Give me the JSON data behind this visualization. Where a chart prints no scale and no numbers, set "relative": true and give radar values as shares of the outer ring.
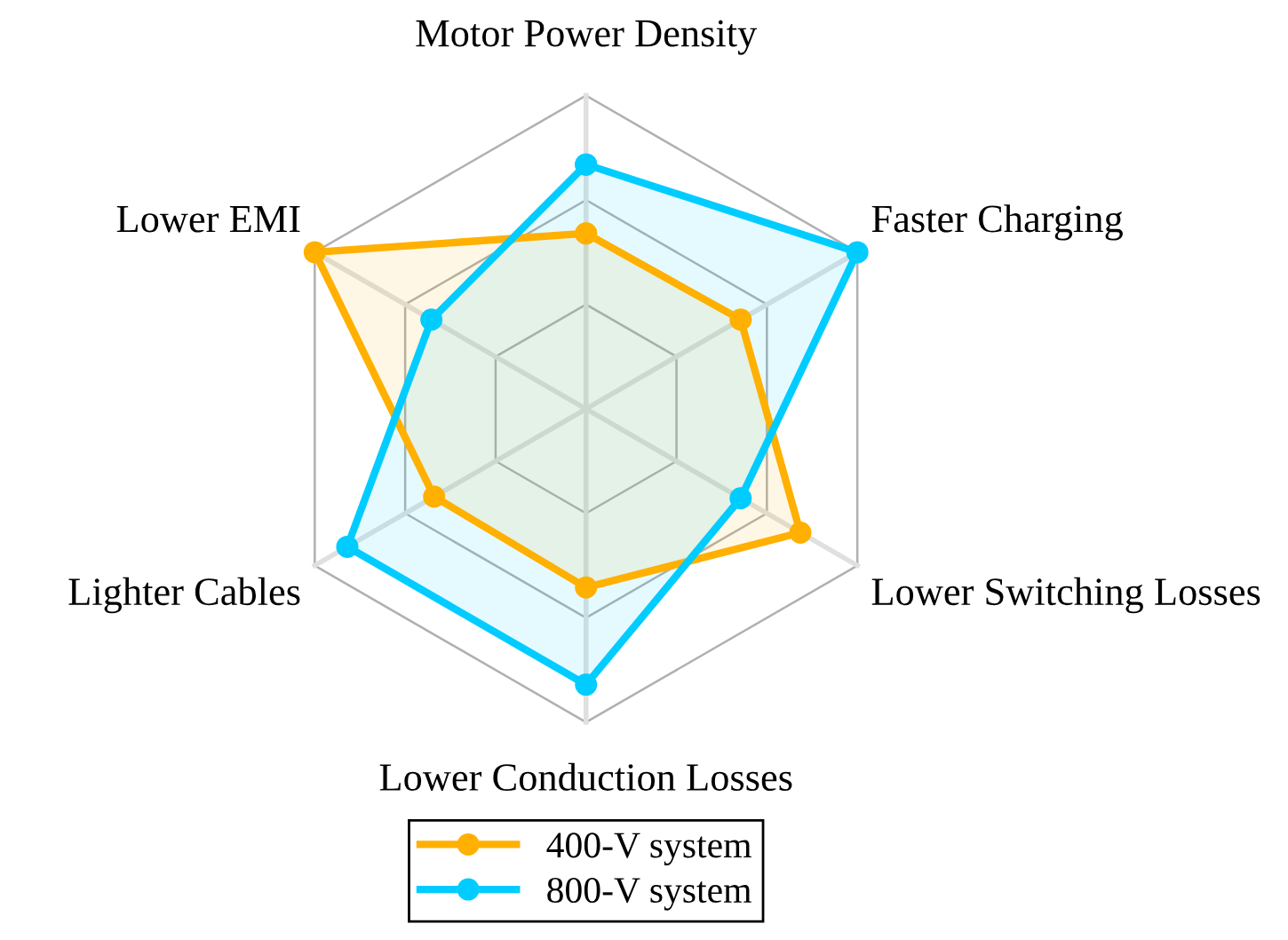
{
  "chart_data": {
    "type": "radar",
    "relative": true,
    "grid": true,
    "legend": "bottom",
    "marker": "circle",
    "line_style": "solid",
    "categories": [
      "Motor Power Density",
      "Faster Charging",
      "Lower Switching Losses",
      "Lower Conduction Losses",
      "Lighter Cables",
      "Lower EMI"
    ],
    "series": [
      {
        "name": "400-V system",
        "color": "#ffb000",
        "values": [
          0.56,
          0.57,
          0.79,
          0.57,
          0.56,
          1.0
        ]
      },
      {
        "name": "800-V system",
        "color": "#00ccff",
        "values": [
          0.78,
          1.0,
          0.57,
          0.88,
          0.88,
          0.57
        ]
      }
    ]
  }
}
